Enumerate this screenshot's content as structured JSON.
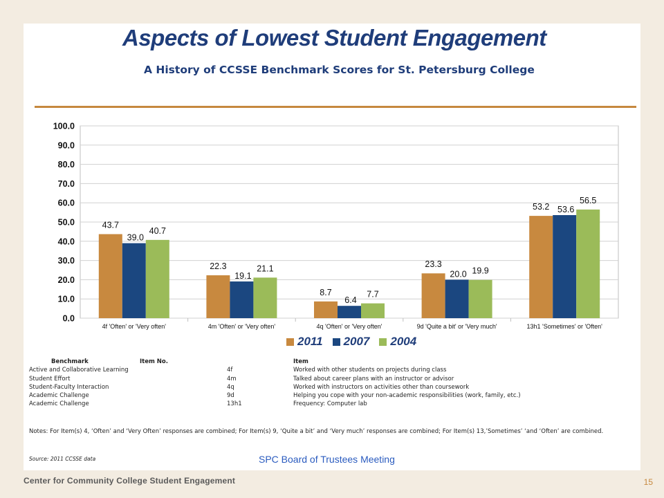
{
  "slide": {
    "title": "Aspects of Lowest Student Engagement",
    "subtitle": "A History of CCSSE Benchmark Scores for St. Petersburg College",
    "footer_center": "SPC Board of Trustees Meeting",
    "organization": "Center for Community College Student Engagement",
    "page_number": "15",
    "source": "Source: 2011 CCSSE data",
    "notes": "Notes: For Item(s) 4, ‘Often’ and ‘Very Often’ responses are combined; For Item(s) 9, ‘Quite a bit’ and ‘Very much’ responses are combined; For Item(s) 13,’Sometimes’ ‘and ‘Often’ are combined."
  },
  "colors": {
    "series_2011": "#c8893f",
    "series_2007": "#1b4780",
    "series_2004": "#9bbb59",
    "accent_rule": "#c6883e",
    "title": "#1f3d7a"
  },
  "chart_data": {
    "type": "bar",
    "categories": [
      "4f 'Often' or 'Very often'",
      "4m 'Often' or 'Very often'",
      "4q 'Often' or 'Very often'",
      "9d 'Quite a bit' or 'Very much'",
      "13h1 'Sometimes' or 'Often'"
    ],
    "series": [
      {
        "name": "2011",
        "values": [
          43.7,
          22.3,
          8.7,
          23.3,
          53.2
        ]
      },
      {
        "name": "2007",
        "values": [
          39.0,
          19.1,
          6.4,
          20.0,
          53.6
        ]
      },
      {
        "name": "2004",
        "values": [
          40.7,
          21.1,
          7.7,
          19.9,
          56.5
        ]
      }
    ],
    "ylim": [
      0,
      100
    ],
    "yticks": [
      "0.0",
      "10.0",
      "20.0",
      "30.0",
      "40.0",
      "50.0",
      "60.0",
      "70.0",
      "80.0",
      "90.0",
      "100.0"
    ],
    "grid": true,
    "legend_position": "bottom"
  },
  "table": {
    "headers": {
      "benchmark": "Benchmark",
      "item_no": "Item No.",
      "item": "Item"
    },
    "rows": [
      {
        "benchmark": "Active and Collaborative Learning",
        "item_no": "4f",
        "item": "Worked with other students on projects during class"
      },
      {
        "benchmark": "Student Effort",
        "item_no": "4m",
        "item": "Talked about career plans with an instructor or advisor"
      },
      {
        "benchmark": "Student-Faculty Interaction",
        "item_no": "4q",
        "item": "Worked with instructors on activities other than coursework"
      },
      {
        "benchmark": "Academic Challenge",
        "item_no": "9d",
        "item": "Helping you cope with your non-academic responsibilities (work, family, etc.)"
      },
      {
        "benchmark": "Academic Challenge",
        "item_no": "13h1",
        "item": "Frequency: Computer lab"
      }
    ]
  }
}
